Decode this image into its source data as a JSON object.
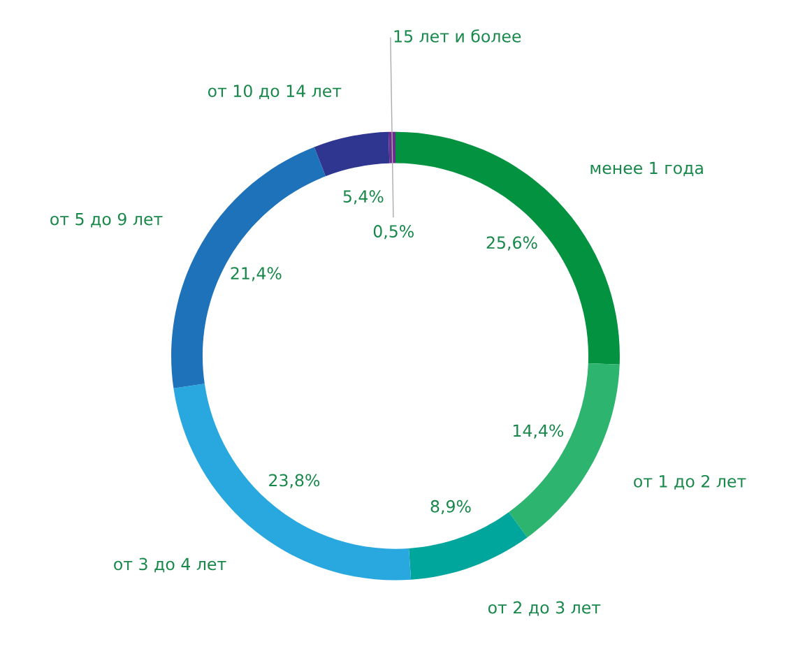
{
  "chart_data": {
    "type": "donut",
    "categories": [
      "менее 1 года",
      "от 1 до 2 лет",
      "от 2 до 3 лет",
      "от 3 до 4 лет",
      "от 5 до 9 лет",
      "от 10 до 14 лет",
      "15 лет и более"
    ],
    "values": [
      25.6,
      14.4,
      8.9,
      23.8,
      21.4,
      5.4,
      0.5
    ],
    "colors": [
      "#03923f",
      "#2db46e",
      "#00a59c",
      "#29a8e0",
      "#1e72b9",
      "#2e3690",
      "#6a2c8e"
    ],
    "value_labels": [
      "25,6%",
      "14,4%",
      "8,9%",
      "23,8%",
      "21,4%",
      "5,4%",
      "0,5%"
    ],
    "legend": false
  }
}
